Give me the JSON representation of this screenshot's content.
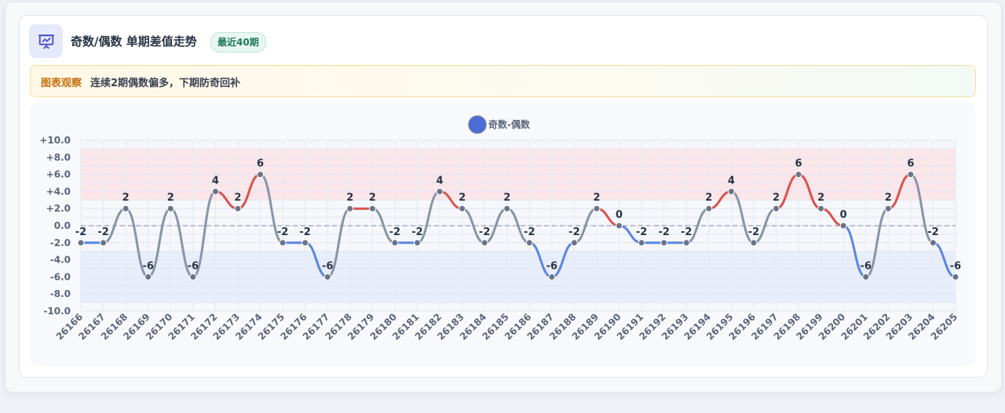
{
  "header": {
    "icon": "presentation-chart-icon",
    "title": "奇数/偶数 单期差值走势",
    "badge": "最近40期"
  },
  "observation": {
    "label": "图表观察",
    "text": "连续2期偶数偏多，下期防奇回补"
  },
  "colors": {
    "accent": "#4b6bd6",
    "positive_line": "#d9534f",
    "negative_line": "#5b86e0",
    "neutral_line": "#8a94a6",
    "positive_band": "#fbe3e6",
    "negative_band": "#e6ecfb",
    "marker": "#6b7486"
  },
  "chart_data": {
    "type": "line",
    "legend": "奇数-偶数",
    "legend_position": "top-center",
    "categories": [
      "26166",
      "26167",
      "26168",
      "26169",
      "26170",
      "26171",
      "26172",
      "26173",
      "26174",
      "26175",
      "26176",
      "26177",
      "26178",
      "26179",
      "26180",
      "26181",
      "26182",
      "26183",
      "26184",
      "26185",
      "26186",
      "26187",
      "26188",
      "26189",
      "26190",
      "26191",
      "26192",
      "26193",
      "26194",
      "26195",
      "26196",
      "26197",
      "26198",
      "26199",
      "26200",
      "26201",
      "26202",
      "26203",
      "26204",
      "26205"
    ],
    "series": [
      {
        "name": "奇数-偶数",
        "values": [
          -2,
          -2,
          2,
          -6,
          2,
          -6,
          4,
          2,
          6,
          -2,
          -2,
          -6,
          2,
          2,
          -2,
          -2,
          4,
          2,
          -2,
          2,
          -2,
          -6,
          -2,
          2,
          0,
          -2,
          -2,
          -2,
          2,
          4,
          -2,
          2,
          6,
          2,
          0,
          -6,
          2,
          6,
          -2,
          -6
        ]
      }
    ],
    "y_ticks": [
      "+10.0",
      "+8.0",
      "+6.0",
      "+4.0",
      "+2.0",
      "0.0",
      "-2.0",
      "-4.0",
      "-6.0",
      "-8.0",
      "-10.0"
    ],
    "ylim": [
      -10,
      10
    ],
    "bands": [
      {
        "from": 3,
        "to": 9,
        "color": "positive"
      },
      {
        "from": -9,
        "to": -3,
        "color": "negative"
      }
    ],
    "grid": true
  }
}
